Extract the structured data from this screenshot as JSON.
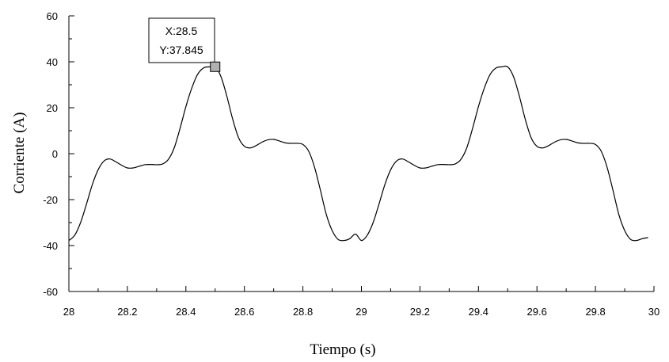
{
  "chart_data": {
    "type": "line",
    "xlabel": "Tiempo (s)",
    "ylabel": "Corriente (A)",
    "xlim": [
      28,
      30
    ],
    "ylim": [
      -60,
      60
    ],
    "x_ticks": [
      "28",
      "28.2",
      "28.4",
      "28.6",
      "28.8",
      "29",
      "29.2",
      "29.4",
      "29.6",
      "29.8",
      "30"
    ],
    "y_ticks": [
      "60",
      "40",
      "20",
      "0",
      "-20",
      "-40",
      "-60"
    ],
    "grid": false,
    "series": [
      {
        "color": "#000000",
        "x": [
          28.0,
          28.02,
          28.04,
          28.06,
          28.08,
          28.1,
          28.12,
          28.14,
          28.16,
          28.18,
          28.2,
          28.22,
          28.24,
          28.26,
          28.28,
          28.3,
          28.32,
          28.34,
          28.36,
          28.38,
          28.4,
          28.42,
          28.44,
          28.46,
          28.48,
          28.5,
          28.52,
          28.54,
          28.56,
          28.58,
          28.6,
          28.62,
          28.64,
          28.66,
          28.68,
          28.7,
          28.72,
          28.74,
          28.76,
          28.78,
          28.8,
          28.82,
          28.84,
          28.86,
          28.88,
          28.9,
          28.92,
          28.94,
          28.96,
          28.98,
          29.0,
          29.02,
          29.04,
          29.06,
          29.08,
          29.1,
          29.12,
          29.14,
          29.16,
          29.18,
          29.2,
          29.22,
          29.24,
          29.26,
          29.28,
          29.3,
          29.32,
          29.34,
          29.36,
          29.38,
          29.4,
          29.42,
          29.44,
          29.46,
          29.48,
          29.5,
          29.52,
          29.54,
          29.56,
          29.58,
          29.6,
          29.62,
          29.64,
          29.66,
          29.68,
          29.7,
          29.72,
          29.74,
          29.76,
          29.78,
          29.8,
          29.82,
          29.84,
          29.86,
          29.88,
          29.9,
          29.92,
          29.94,
          29.96,
          29.98
        ],
        "y": [
          -37.8,
          -35.5,
          -30.0,
          -22.0,
          -13.5,
          -7.0,
          -3.2,
          -2.3,
          -3.5,
          -5.0,
          -6.2,
          -6.2,
          -5.5,
          -4.8,
          -4.7,
          -4.8,
          -4.5,
          -2.5,
          2.5,
          11.0,
          20.5,
          28.5,
          34.5,
          37.3,
          37.8,
          37.8,
          33.5,
          25.0,
          15.0,
          7.0,
          3.2,
          2.5,
          3.5,
          5.0,
          6.0,
          6.2,
          5.5,
          4.7,
          4.5,
          4.5,
          4.0,
          1.0,
          -6.0,
          -16.0,
          -26.5,
          -33.5,
          -37.3,
          -37.8,
          -37.0,
          -35.0,
          -37.8,
          -35.5,
          -30.0,
          -22.0,
          -13.5,
          -7.0,
          -3.2,
          -2.3,
          -3.5,
          -5.0,
          -6.2,
          -6.2,
          -5.5,
          -4.8,
          -4.7,
          -4.8,
          -4.5,
          -2.5,
          2.5,
          11.0,
          20.5,
          28.5,
          34.5,
          37.3,
          37.8,
          37.8,
          33.5,
          25.0,
          15.0,
          7.0,
          3.2,
          2.5,
          3.5,
          5.0,
          6.0,
          6.2,
          5.5,
          4.7,
          4.5,
          4.5,
          4.0,
          1.0,
          -6.0,
          -16.0,
          -26.5,
          -33.5,
          -37.3,
          -37.8,
          -37.0,
          -36.5
        ]
      }
    ],
    "tooltip": {
      "x_label": "X:28.5",
      "y_label": "Y:37.845",
      "x": 28.5,
      "y": 37.845,
      "marker_color": "#b0b0b0"
    }
  }
}
